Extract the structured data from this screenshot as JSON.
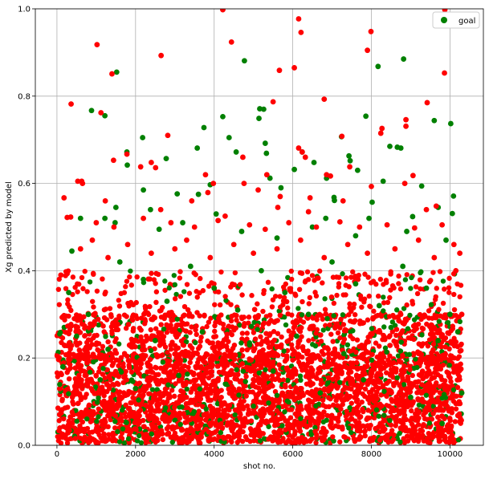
{
  "chart_data": {
    "type": "scatter",
    "title": "",
    "xlabel": "shot no.",
    "ylabel": "Xg predicted by model",
    "xlim": [
      -550,
      10850
    ],
    "ylim": [
      0.0,
      1.0
    ],
    "x_ticks": [
      0,
      2000,
      4000,
      6000,
      8000,
      10000
    ],
    "x_tick_labels": [
      "0",
      "2000",
      "4000",
      "6000",
      "8000",
      "10000"
    ],
    "y_ticks": [
      0.0,
      0.2,
      0.4,
      0.6,
      0.8,
      1.0
    ],
    "y_tick_labels": [
      "0.0",
      "0.2",
      "0.4",
      "0.6",
      "0.8",
      "1.0"
    ],
    "grid": true,
    "legend_position": "top-right",
    "series": [
      {
        "name": "goal",
        "color": "#008000",
        "points": [
          [
            380,
            0.445
          ],
          [
            880,
            0.767
          ],
          [
            1220,
            0.755
          ],
          [
            1520,
            0.855
          ],
          [
            1780,
            0.672
          ],
          [
            1790,
            0.642
          ],
          [
            2180,
            0.705
          ],
          [
            2200,
            0.585
          ],
          [
            2780,
            0.657
          ],
          [
            3060,
            0.576
          ],
          [
            3570,
            0.681
          ],
          [
            3740,
            0.728
          ],
          [
            3900,
            0.597
          ],
          [
            4220,
            0.753
          ],
          [
            4380,
            0.705
          ],
          [
            4560,
            0.672
          ],
          [
            4770,
            0.881
          ],
          [
            5140,
            0.749
          ],
          [
            5160,
            0.771
          ],
          [
            5260,
            0.77
          ],
          [
            5300,
            0.692
          ],
          [
            5330,
            0.669
          ],
          [
            5420,
            0.612
          ],
          [
            6040,
            0.632
          ],
          [
            6240,
            0.672
          ],
          [
            6540,
            0.648
          ],
          [
            6860,
            0.612
          ],
          [
            7050,
            0.568
          ],
          [
            7060,
            0.561
          ],
          [
            7240,
            0.707
          ],
          [
            7430,
            0.663
          ],
          [
            7460,
            0.652
          ],
          [
            7650,
            0.63
          ],
          [
            7860,
            0.754
          ],
          [
            8020,
            0.557
          ],
          [
            8170,
            0.868
          ],
          [
            8470,
            0.685
          ],
          [
            8660,
            0.683
          ],
          [
            8750,
            0.681
          ],
          [
            8820,
            0.885
          ],
          [
            9050,
            0.524
          ],
          [
            9280,
            0.594
          ],
          [
            9600,
            0.744
          ],
          [
            10020,
            0.737
          ],
          [
            10090,
            0.571
          ],
          [
            10060,
            0.531
          ],
          [
            9700,
            0.545
          ],
          [
            8300,
            0.605
          ],
          [
            3600,
            0.575
          ],
          [
            1480,
            0.51
          ],
          [
            1220,
            0.52
          ],
          [
            2380,
            0.54
          ],
          [
            4050,
            0.53
          ],
          [
            5700,
            0.59
          ],
          [
            6840,
            0.52
          ],
          [
            7940,
            0.52
          ],
          [
            600,
            0.52
          ],
          [
            1500,
            0.545
          ],
          [
            2600,
            0.495
          ],
          [
            3200,
            0.51
          ],
          [
            4700,
            0.49
          ],
          [
            5600,
            0.475
          ],
          [
            6500,
            0.5
          ],
          [
            7600,
            0.48
          ],
          [
            8900,
            0.49
          ],
          [
            9900,
            0.47
          ],
          [
            300,
            0.35
          ],
          [
            800,
            0.3
          ],
          [
            1600,
            0.42
          ],
          [
            2200,
            0.38
          ],
          [
            2800,
            0.33
          ],
          [
            3400,
            0.41
          ],
          [
            4000,
            0.36
          ],
          [
            4600,
            0.31
          ],
          [
            5200,
            0.4
          ],
          [
            5800,
            0.35
          ],
          [
            6400,
            0.3
          ],
          [
            7000,
            0.42
          ],
          [
            7600,
            0.37
          ],
          [
            8200,
            0.32
          ],
          [
            8800,
            0.41
          ],
          [
            9400,
            0.36
          ],
          [
            10000,
            0.3
          ],
          [
            10300,
            0.12
          ],
          [
            9800,
            0.05
          ],
          [
            150,
            0.18
          ],
          [
            1100,
            0.15
          ],
          [
            2000,
            0.13
          ],
          [
            3100,
            0.16
          ],
          [
            4300,
            0.14
          ],
          [
            5500,
            0.17
          ],
          [
            6700,
            0.12
          ],
          [
            7800,
            0.15
          ],
          [
            9000,
            0.11
          ],
          [
            500,
            0.25
          ],
          [
            1300,
            0.22
          ],
          [
            2500,
            0.24
          ],
          [
            3700,
            0.26
          ],
          [
            4900,
            0.23
          ],
          [
            6100,
            0.25
          ],
          [
            7300,
            0.21
          ],
          [
            8500,
            0.27
          ],
          [
            9700,
            0.24
          ],
          [
            10200,
            0.26
          ]
        ]
      },
      {
        "name": "",
        "color": "#ff0000",
        "points": [
          [
            4220,
            0.998
          ],
          [
            9870,
            0.998
          ],
          [
            6150,
            0.977
          ],
          [
            7990,
            0.948
          ],
          [
            6210,
            0.946
          ],
          [
            1020,
            0.918
          ],
          [
            4440,
            0.924
          ],
          [
            7900,
            0.905
          ],
          [
            2650,
            0.893
          ],
          [
            6040,
            0.865
          ],
          [
            5660,
            0.859
          ],
          [
            1400,
            0.851
          ],
          [
            9860,
            0.853
          ],
          [
            6800,
            0.793
          ],
          [
            5500,
            0.787
          ],
          [
            360,
            0.782
          ],
          [
            9420,
            0.785
          ],
          [
            1120,
            0.762
          ],
          [
            8880,
            0.746
          ],
          [
            8880,
            0.731
          ],
          [
            8270,
            0.726
          ],
          [
            2820,
            0.71
          ],
          [
            7250,
            0.708
          ],
          [
            2130,
            0.638
          ],
          [
            2400,
            0.648
          ],
          [
            6150,
            0.681
          ],
          [
            6240,
            0.672
          ],
          [
            6320,
            0.66
          ],
          [
            4730,
            0.66
          ],
          [
            1780,
            0.667
          ],
          [
            1440,
            0.653
          ],
          [
            630,
            0.605
          ],
          [
            530,
            0.605
          ],
          [
            180,
            0.567
          ],
          [
            650,
            0.6
          ],
          [
            3840,
            0.579
          ],
          [
            3980,
            0.6
          ],
          [
            5340,
            0.62
          ],
          [
            6860,
            0.62
          ],
          [
            7450,
            0.638
          ],
          [
            8000,
            0.593
          ],
          [
            8850,
            0.6
          ],
          [
            9060,
            0.618
          ],
          [
            2510,
            0.636
          ],
          [
            4760,
            0.6
          ],
          [
            5680,
            0.57
          ],
          [
            6440,
            0.567
          ],
          [
            7280,
            0.56
          ],
          [
            3430,
            0.56
          ],
          [
            1230,
            0.56
          ],
          [
            6400,
            0.535
          ],
          [
            8240,
            0.715
          ],
          [
            5120,
            0.585
          ],
          [
            5620,
            0.545
          ],
          [
            2640,
            0.54
          ],
          [
            4280,
            0.525
          ],
          [
            3780,
            0.62
          ],
          [
            6960,
            0.617
          ],
          [
            9400,
            0.54
          ],
          [
            9650,
            0.548
          ],
          [
            260,
            0.522
          ],
          [
            350,
            0.523
          ],
          [
            1000,
            0.51
          ],
          [
            1450,
            0.5
          ],
          [
            2200,
            0.52
          ],
          [
            2900,
            0.51
          ],
          [
            3500,
            0.5
          ],
          [
            4100,
            0.515
          ],
          [
            4900,
            0.505
          ],
          [
            5300,
            0.495
          ],
          [
            5900,
            0.51
          ],
          [
            6600,
            0.5
          ],
          [
            7200,
            0.512
          ],
          [
            7700,
            0.5
          ],
          [
            8400,
            0.505
          ],
          [
            9100,
            0.498
          ],
          [
            9800,
            0.505
          ],
          [
            10250,
            0.44
          ],
          [
            10150,
            0.4
          ],
          [
            100,
            0.39
          ],
          [
            600,
            0.45
          ],
          [
            900,
            0.47
          ],
          [
            1300,
            0.43
          ],
          [
            1800,
            0.46
          ],
          [
            2400,
            0.44
          ],
          [
            3000,
            0.45
          ],
          [
            3300,
            0.47
          ],
          [
            3900,
            0.43
          ],
          [
            4500,
            0.46
          ],
          [
            5000,
            0.44
          ],
          [
            5600,
            0.45
          ],
          [
            6200,
            0.47
          ],
          [
            6800,
            0.43
          ],
          [
            7400,
            0.46
          ],
          [
            7900,
            0.44
          ],
          [
            8600,
            0.45
          ],
          [
            9200,
            0.47
          ],
          [
            9600,
            0.43
          ],
          [
            10100,
            0.46
          ],
          [
            10300,
            0.3
          ]
        ]
      }
    ]
  }
}
